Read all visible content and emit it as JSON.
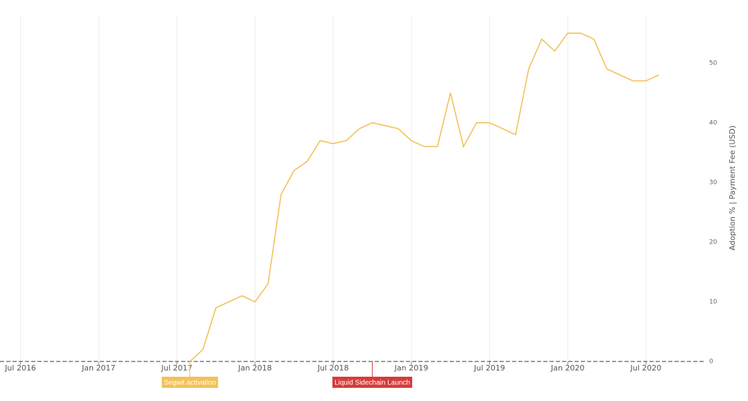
{
  "chart_data": {
    "type": "line",
    "x": [
      "2017-08",
      "2017-09",
      "2017-10",
      "2017-11",
      "2017-12",
      "2018-01",
      "2018-02",
      "2018-03",
      "2018-04",
      "2018-05",
      "2018-06",
      "2018-07",
      "2018-08",
      "2018-09",
      "2018-10",
      "2018-11",
      "2018-12",
      "2019-01",
      "2019-02",
      "2019-03",
      "2019-04",
      "2019-05",
      "2019-06",
      "2019-07",
      "2019-08",
      "2019-09",
      "2019-10",
      "2019-11",
      "2019-12",
      "2020-01",
      "2020-02",
      "2020-03",
      "2020-04",
      "2020-05",
      "2020-06",
      "2020-07",
      "2020-08"
    ],
    "values": [
      0,
      2,
      9,
      10,
      11,
      10,
      13,
      28,
      32,
      33.5,
      37,
      36.5,
      37,
      39,
      40,
      39.5,
      39,
      37,
      36,
      36,
      45,
      36,
      40,
      40,
      39,
      38,
      49,
      54,
      52,
      55,
      55,
      54,
      49,
      48,
      47,
      47,
      48
    ],
    "color": "#f2c158",
    "xlim": [
      "2016-05",
      "2020-11"
    ],
    "xticks": [
      {
        "value": "2016-07",
        "label": "Jul 2016"
      },
      {
        "value": "2017-01",
        "label": "Jan 2017"
      },
      {
        "value": "2017-07",
        "label": "Jul 2017"
      },
      {
        "value": "2018-01",
        "label": "Jan 2018"
      },
      {
        "value": "2018-07",
        "label": "Jul 2018"
      },
      {
        "value": "2019-01",
        "label": "Jan 2019"
      },
      {
        "value": "2019-07",
        "label": "Jul 2019"
      },
      {
        "value": "2020-01",
        "label": "Jan 2020"
      },
      {
        "value": "2020-07",
        "label": "Jul 2020"
      }
    ],
    "ylim": [
      0,
      58
    ],
    "yticks": [
      0,
      10,
      20,
      30,
      40,
      50
    ],
    "y_label": "Adoption % | Payment Fee (USD)",
    "grid": true,
    "annotations": [
      {
        "x": "2017-08",
        "text": "Segwit activation",
        "color": "#f2c158"
      },
      {
        "x": "2018-10",
        "text": "Liquid Sidechain Launch",
        "color": "#d63b3b"
      }
    ]
  }
}
